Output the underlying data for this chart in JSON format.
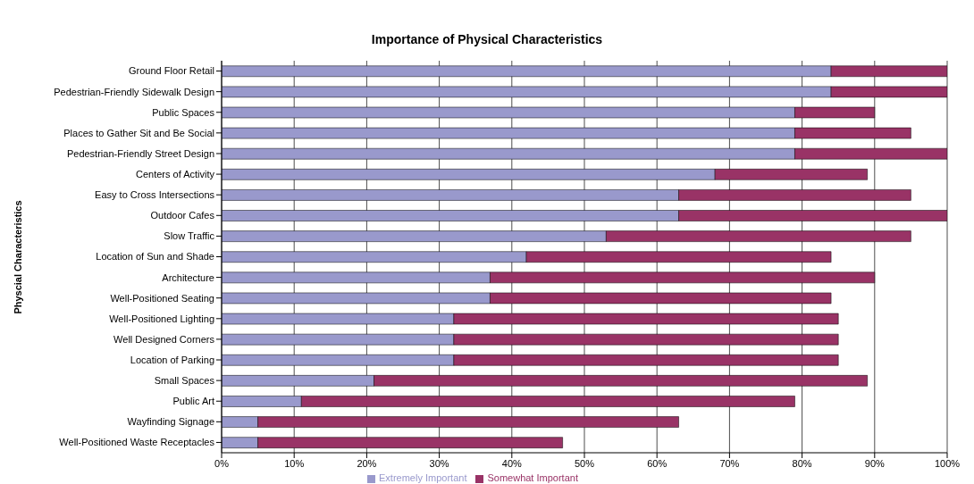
{
  "chart_data": {
    "type": "bar",
    "orientation": "horizontal",
    "stacked": true,
    "title": "Importance of Physical Characteristics",
    "ylabel": "Physcial Characteristics",
    "categories": [
      "Ground Floor Retail",
      "Pedestrian-Friendly Sidewalk Design",
      "Public Spaces",
      "Places to Gather Sit and Be Social",
      "Pedestrian-Friendly Street Design",
      "Centers of Activity",
      "Easy to Cross Intersections",
      "Outdoor Cafes",
      "Slow Traffic",
      "Location of Sun and Shade",
      "Architecture",
      "Well-Positioned Seating",
      "Well-Positioned Lighting",
      "Well Designed Corners",
      "Location of Parking",
      "Small Spaces",
      "Public Art",
      "Wayfinding Signage",
      "Well-Positioned Waste Receptacles"
    ],
    "series": [
      {
        "name": "Extremely Important",
        "color": "#9999cc",
        "values": [
          84,
          84,
          79,
          79,
          79,
          68,
          63,
          63,
          53,
          42,
          37,
          37,
          32,
          32,
          32,
          21,
          11,
          5,
          5
        ]
      },
      {
        "name": "Somewhat Important",
        "color": "#993366",
        "values": [
          16,
          16,
          11,
          16,
          21,
          21,
          32,
          37,
          42,
          42,
          53,
          47,
          53,
          53,
          53,
          68,
          68,
          58,
          42
        ]
      }
    ],
    "xlim": [
      0,
      100
    ],
    "xticks": [
      {
        "value": 0,
        "label": "0%"
      },
      {
        "value": 10,
        "label": "10%"
      },
      {
        "value": 20,
        "label": "20%"
      },
      {
        "value": 30,
        "label": "30%"
      },
      {
        "value": 40,
        "label": "40%"
      },
      {
        "value": 50,
        "label": "50%"
      },
      {
        "value": 60,
        "label": "60%"
      },
      {
        "value": 70,
        "label": "70%"
      },
      {
        "value": 80,
        "label": "80%"
      },
      {
        "value": 90,
        "label": "90%"
      },
      {
        "value": 100,
        "label": "100%"
      }
    ],
    "grid": "x",
    "legend": "bottom"
  }
}
